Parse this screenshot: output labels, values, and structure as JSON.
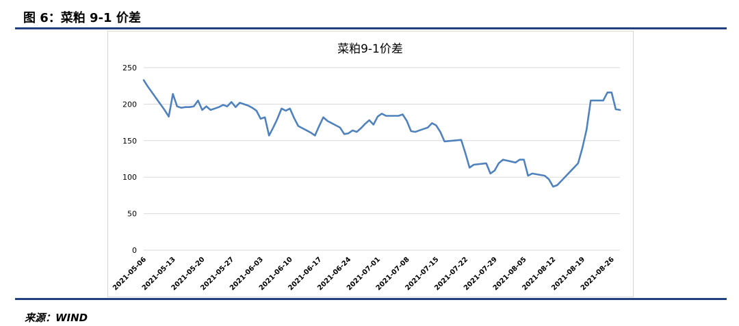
{
  "figure": {
    "title": "图 6：菜粕 9-1 价差",
    "source": "来源：WIND"
  },
  "colors": {
    "rule": "#1F3F7F",
    "line": "#4F81BD",
    "grid": "#D9D9D9",
    "text": "#000000"
  },
  "chart_data": {
    "type": "line",
    "title": "菜粕9-1价差",
    "xlabel": "",
    "ylabel": "",
    "ylim": [
      0,
      250
    ],
    "yticks": [
      0,
      50,
      100,
      150,
      200,
      250
    ],
    "grid": true,
    "legend": "none",
    "x_ticks": [
      "2021-05-06",
      "2021-05-13",
      "2021-05-20",
      "2021-05-27",
      "2021-06-03",
      "2021-06-10",
      "2021-06-17",
      "2021-06-24",
      "2021-07-01",
      "2021-07-08",
      "2021-07-15",
      "2021-07-22",
      "2021-07-29",
      "2021-08-05",
      "2021-08-12",
      "2021-08-19",
      "2021-08-26"
    ],
    "series": [
      {
        "name": "",
        "points": [
          [
            "2021-05-06",
            233
          ],
          [
            "2021-05-07",
            224
          ],
          [
            "2021-05-08",
            216
          ],
          [
            "2021-05-09",
            208
          ],
          [
            "2021-05-10",
            200
          ],
          [
            "2021-05-11",
            192
          ],
          [
            "2021-05-12",
            183
          ],
          [
            "2021-05-13",
            214
          ],
          [
            "2021-05-14",
            197
          ],
          [
            "2021-05-15",
            195
          ],
          [
            "2021-05-16",
            196
          ],
          [
            "2021-05-17",
            196
          ],
          [
            "2021-05-18",
            197
          ],
          [
            "2021-05-19",
            205
          ],
          [
            "2021-05-20",
            192
          ],
          [
            "2021-05-21",
            197
          ],
          [
            "2021-05-22",
            192
          ],
          [
            "2021-05-23",
            194
          ],
          [
            "2021-05-24",
            196
          ],
          [
            "2021-05-25",
            199
          ],
          [
            "2021-05-26",
            197
          ],
          [
            "2021-05-27",
            203
          ],
          [
            "2021-05-28",
            196
          ],
          [
            "2021-05-29",
            202
          ],
          [
            "2021-05-30",
            200
          ],
          [
            "2021-05-31",
            198
          ],
          [
            "2021-06-01",
            195
          ],
          [
            "2021-06-02",
            191
          ],
          [
            "2021-06-03",
            180
          ],
          [
            "2021-06-04",
            182
          ],
          [
            "2021-06-05",
            157
          ],
          [
            "2021-06-06",
            168
          ],
          [
            "2021-06-07",
            180
          ],
          [
            "2021-06-08",
            194
          ],
          [
            "2021-06-09",
            191
          ],
          [
            "2021-06-10",
            194
          ],
          [
            "2021-06-11",
            181
          ],
          [
            "2021-06-12",
            170
          ],
          [
            "2021-06-13",
            167
          ],
          [
            "2021-06-14",
            164
          ],
          [
            "2021-06-15",
            161
          ],
          [
            "2021-06-16",
            157
          ],
          [
            "2021-06-17",
            170
          ],
          [
            "2021-06-18",
            182
          ],
          [
            "2021-06-19",
            177
          ],
          [
            "2021-06-20",
            174
          ],
          [
            "2021-06-21",
            171
          ],
          [
            "2021-06-22",
            168
          ],
          [
            "2021-06-23",
            159
          ],
          [
            "2021-06-24",
            160
          ],
          [
            "2021-06-25",
            164
          ],
          [
            "2021-06-26",
            162
          ],
          [
            "2021-06-27",
            167
          ],
          [
            "2021-06-28",
            173
          ],
          [
            "2021-06-29",
            178
          ],
          [
            "2021-06-30",
            172
          ],
          [
            "2021-07-01",
            183
          ],
          [
            "2021-07-02",
            187
          ],
          [
            "2021-07-03",
            184
          ],
          [
            "2021-07-04",
            184
          ],
          [
            "2021-07-05",
            184
          ],
          [
            "2021-07-06",
            184
          ],
          [
            "2021-07-07",
            186
          ],
          [
            "2021-07-08",
            177
          ],
          [
            "2021-07-09",
            163
          ],
          [
            "2021-07-10",
            162
          ],
          [
            "2021-07-11",
            164
          ],
          [
            "2021-07-12",
            166
          ],
          [
            "2021-07-13",
            168
          ],
          [
            "2021-07-14",
            174
          ],
          [
            "2021-07-15",
            171
          ],
          [
            "2021-07-16",
            162
          ],
          [
            "2021-07-17",
            149
          ],
          [
            "2021-07-21",
            151
          ],
          [
            "2021-07-22",
            133
          ],
          [
            "2021-07-23",
            113
          ],
          [
            "2021-07-24",
            117
          ],
          [
            "2021-07-27",
            119
          ],
          [
            "2021-07-28",
            105
          ],
          [
            "2021-07-29",
            109
          ],
          [
            "2021-07-30",
            119
          ],
          [
            "2021-07-31",
            124
          ],
          [
            "2021-08-03",
            120
          ],
          [
            "2021-08-04",
            124
          ],
          [
            "2021-08-05",
            124
          ],
          [
            "2021-08-06",
            102
          ],
          [
            "2021-08-07",
            105
          ],
          [
            "2021-08-10",
            102
          ],
          [
            "2021-08-11",
            97
          ],
          [
            "2021-08-12",
            87
          ],
          [
            "2021-08-13",
            89
          ],
          [
            "2021-08-14",
            95
          ],
          [
            "2021-08-15",
            101
          ],
          [
            "2021-08-16",
            107
          ],
          [
            "2021-08-17",
            113
          ],
          [
            "2021-08-18",
            119
          ],
          [
            "2021-08-19",
            140
          ],
          [
            "2021-08-20",
            165
          ],
          [
            "2021-08-21",
            205
          ],
          [
            "2021-08-24",
            205
          ],
          [
            "2021-08-25",
            216
          ],
          [
            "2021-08-26",
            216
          ],
          [
            "2021-08-27",
            193
          ],
          [
            "2021-08-28",
            192
          ]
        ]
      }
    ]
  }
}
